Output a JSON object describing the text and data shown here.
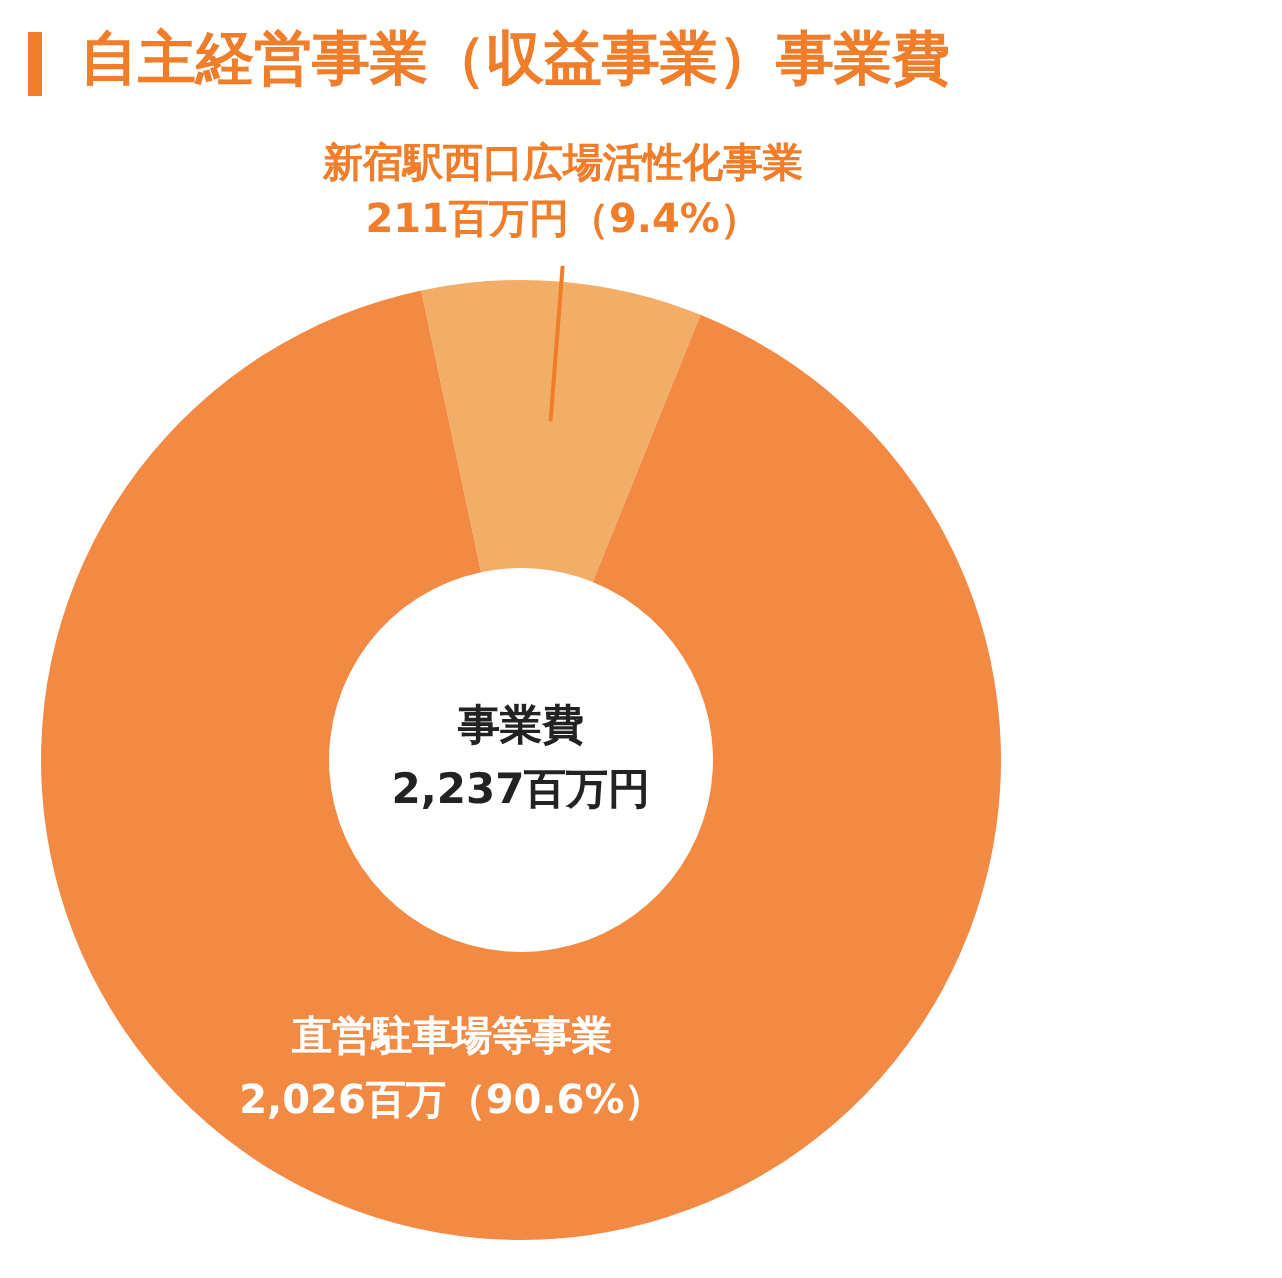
{
  "chart_data": {
    "type": "donut",
    "title": "自主経営事業（収益事業）事業費",
    "categories": [
      "新宿駅西口広場活性化事業",
      "直営駐車場等事業"
    ],
    "values": [
      211,
      2026
    ],
    "colors": [
      "#f2ad66",
      "#f28a44"
    ],
    "value_labels": [
      "211百万円（9.4%）",
      "2,026百万（90.6%）"
    ],
    "annotations": [
      "事業費",
      "2,237百万円"
    ],
    "legend": false
  }
}
